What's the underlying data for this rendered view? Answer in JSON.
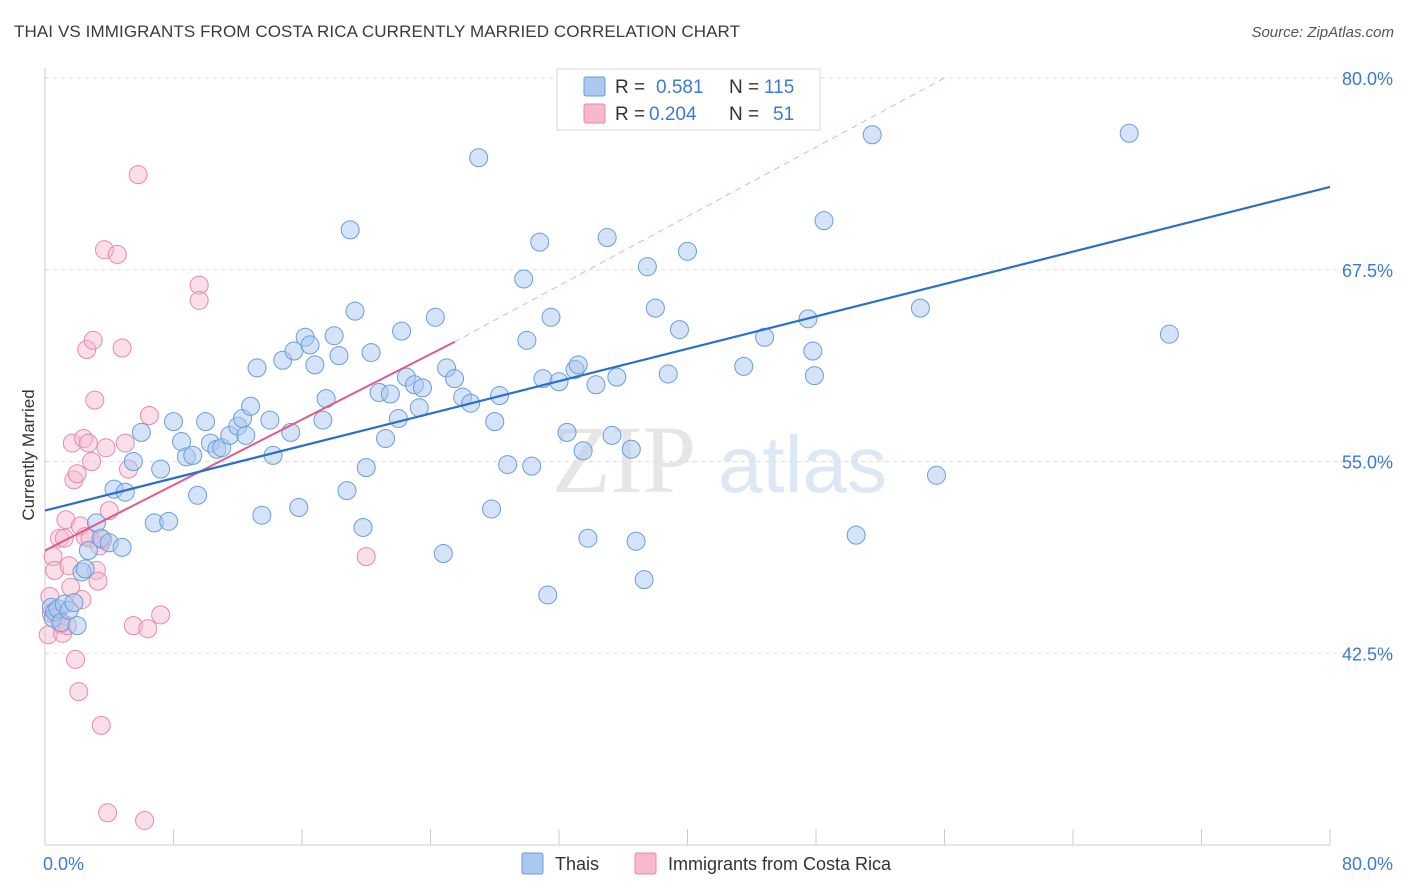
{
  "title": "THAI VS IMMIGRANTS FROM COSTA RICA CURRENTLY MARRIED CORRELATION CHART",
  "source": "Source: ZipAtlas.com",
  "watermark": {
    "zip": "ZIP",
    "atlas": "atlas"
  },
  "legend": {
    "r_label": "R =",
    "n_label": "N =",
    "rows": [
      {
        "r": "0.581",
        "n": "115",
        "color": "#aac8f0"
      },
      {
        "r": "0.204",
        "n": "51",
        "color": "#f7b8cc"
      }
    ]
  },
  "bottom_legend": [
    "Thais",
    "Immigrants from Costa Rica"
  ],
  "colors": {
    "blue_fill": "#aac8f0",
    "blue_stroke": "#6a9ed8",
    "blue_line": "#2b6fcc",
    "pink_fill": "#f7b8cc",
    "pink_stroke": "#e68aa8",
    "pink_line": "#e05a8a",
    "grid": "#dddddd",
    "axis_text": "#3a7bd5"
  },
  "chart_data": {
    "type": "scatter",
    "xlabel": "",
    "ylabel": "Currently Married",
    "xlim": [
      0,
      80
    ],
    "ylim": [
      30,
      80
    ],
    "x_ticks_labels": [
      "0.0%",
      "80.0%"
    ],
    "y_ticks": [
      42.5,
      55.0,
      67.5,
      80.0
    ],
    "y_ticks_labels": [
      "42.5%",
      "55.0%",
      "67.5%",
      "80.0%"
    ],
    "grid": true,
    "legend_position": "top-center",
    "series": [
      {
        "name": "Thais",
        "trend": {
          "x": [
            0,
            80
          ],
          "y": [
            51.8,
            72.9
          ]
        },
        "points": [
          [
            0.4,
            45.5
          ],
          [
            0.5,
            44.8
          ],
          [
            0.6,
            45.2
          ],
          [
            0.8,
            45.4
          ],
          [
            1.0,
            44.5
          ],
          [
            1.2,
            45.7
          ],
          [
            1.5,
            45.3
          ],
          [
            1.8,
            45.8
          ],
          [
            2.0,
            44.3
          ],
          [
            2.3,
            47.8
          ],
          [
            2.5,
            48.0
          ],
          [
            2.7,
            49.2
          ],
          [
            3.2,
            51.0
          ],
          [
            3.5,
            50.0
          ],
          [
            4.0,
            49.7
          ],
          [
            4.3,
            53.2
          ],
          [
            4.8,
            49.4
          ],
          [
            5.0,
            53.0
          ],
          [
            5.5,
            55.0
          ],
          [
            6.0,
            56.9
          ],
          [
            6.8,
            51.0
          ],
          [
            7.2,
            54.5
          ],
          [
            7.7,
            51.1
          ],
          [
            8.0,
            57.6
          ],
          [
            8.5,
            56.3
          ],
          [
            8.8,
            55.3
          ],
          [
            9.2,
            55.4
          ],
          [
            9.5,
            52.8
          ],
          [
            10.0,
            57.6
          ],
          [
            10.3,
            56.2
          ],
          [
            10.7,
            55.8
          ],
          [
            11.0,
            55.9
          ],
          [
            11.5,
            56.7
          ],
          [
            12.0,
            57.3
          ],
          [
            12.3,
            57.8
          ],
          [
            12.5,
            56.7
          ],
          [
            12.8,
            58.6
          ],
          [
            13.2,
            61.1
          ],
          [
            13.5,
            51.5
          ],
          [
            14.0,
            57.7
          ],
          [
            14.2,
            55.4
          ],
          [
            14.8,
            61.6
          ],
          [
            15.3,
            56.9
          ],
          [
            15.5,
            62.2
          ],
          [
            15.8,
            52.0
          ],
          [
            16.2,
            63.1
          ],
          [
            16.5,
            62.6
          ],
          [
            16.8,
            61.3
          ],
          [
            17.3,
            57.7
          ],
          [
            17.5,
            59.1
          ],
          [
            18.0,
            63.2
          ],
          [
            18.3,
            61.9
          ],
          [
            18.8,
            53.1
          ],
          [
            19.0,
            70.1
          ],
          [
            19.3,
            64.8
          ],
          [
            19.8,
            50.7
          ],
          [
            20.0,
            54.6
          ],
          [
            20.3,
            62.1
          ],
          [
            20.8,
            59.5
          ],
          [
            21.2,
            56.5
          ],
          [
            21.5,
            59.4
          ],
          [
            22.0,
            57.8
          ],
          [
            22.2,
            63.5
          ],
          [
            22.5,
            60.5
          ],
          [
            23.0,
            60.0
          ],
          [
            23.3,
            58.5
          ],
          [
            23.5,
            59.8
          ],
          [
            24.3,
            64.4
          ],
          [
            24.8,
            49.0
          ],
          [
            25.0,
            61.1
          ],
          [
            25.5,
            60.4
          ],
          [
            26.0,
            59.2
          ],
          [
            26.5,
            58.8
          ],
          [
            27.0,
            74.8
          ],
          [
            27.8,
            51.9
          ],
          [
            28.0,
            57.6
          ],
          [
            28.3,
            59.3
          ],
          [
            28.8,
            54.8
          ],
          [
            29.8,
            66.9
          ],
          [
            30.0,
            62.9
          ],
          [
            30.3,
            54.7
          ],
          [
            30.8,
            69.3
          ],
          [
            31.0,
            60.4
          ],
          [
            31.3,
            46.3
          ],
          [
            31.5,
            64.4
          ],
          [
            32.0,
            60.2
          ],
          [
            32.5,
            56.9
          ],
          [
            33.0,
            61.0
          ],
          [
            33.2,
            61.3
          ],
          [
            33.5,
            55.7
          ],
          [
            33.8,
            50.0
          ],
          [
            34.3,
            60.0
          ],
          [
            35.0,
            69.6
          ],
          [
            35.3,
            56.7
          ],
          [
            35.6,
            60.5
          ],
          [
            36.5,
            55.8
          ],
          [
            36.8,
            49.8
          ],
          [
            37.3,
            47.3
          ],
          [
            37.5,
            67.7
          ],
          [
            38.0,
            65.0
          ],
          [
            38.8,
            60.7
          ],
          [
            39.5,
            63.6
          ],
          [
            40.0,
            68.7
          ],
          [
            43.5,
            61.2
          ],
          [
            44.8,
            63.1
          ],
          [
            47.5,
            64.3
          ],
          [
            47.8,
            62.2
          ],
          [
            47.9,
            60.6
          ],
          [
            48.5,
            70.7
          ],
          [
            50.5,
            50.2
          ],
          [
            51.5,
            76.3
          ],
          [
            54.5,
            65.0
          ],
          [
            55.5,
            54.1
          ],
          [
            67.5,
            76.4
          ],
          [
            70.0,
            63.3
          ]
        ]
      },
      {
        "name": "Immigrants from Costa Rica",
        "trend": {
          "x": [
            0,
            25.5
          ],
          "y": [
            49.2,
            62.8
          ]
        },
        "trend_extension": {
          "x": [
            25.5,
            56
          ],
          "y": [
            62.8,
            80
          ]
        },
        "points": [
          [
            0.2,
            43.7
          ],
          [
            0.3,
            46.2
          ],
          [
            0.4,
            45.1
          ],
          [
            0.5,
            48.8
          ],
          [
            0.6,
            47.9
          ],
          [
            0.8,
            44.9
          ],
          [
            0.9,
            50.0
          ],
          [
            1.0,
            44.4
          ],
          [
            1.1,
            43.8
          ],
          [
            1.2,
            50.0
          ],
          [
            1.3,
            51.2
          ],
          [
            1.4,
            44.3
          ],
          [
            1.5,
            48.2
          ],
          [
            1.6,
            46.8
          ],
          [
            1.7,
            56.2
          ],
          [
            1.8,
            53.8
          ],
          [
            1.9,
            42.1
          ],
          [
            2.0,
            54.2
          ],
          [
            2.1,
            40.0
          ],
          [
            2.2,
            50.8
          ],
          [
            2.3,
            46.0
          ],
          [
            2.4,
            56.5
          ],
          [
            2.5,
            50.1
          ],
          [
            2.6,
            62.3
          ],
          [
            2.7,
            56.2
          ],
          [
            2.8,
            50.0
          ],
          [
            2.9,
            55.0
          ],
          [
            3.0,
            62.9
          ],
          [
            3.1,
            59.0
          ],
          [
            3.2,
            47.9
          ],
          [
            3.3,
            47.2
          ],
          [
            3.4,
            49.5
          ],
          [
            3.5,
            37.8
          ],
          [
            3.6,
            49.9
          ],
          [
            3.7,
            68.8
          ],
          [
            3.8,
            55.9
          ],
          [
            3.9,
            32.1
          ],
          [
            4.0,
            51.8
          ],
          [
            4.5,
            68.5
          ],
          [
            4.8,
            62.4
          ],
          [
            5.0,
            56.2
          ],
          [
            5.2,
            54.5
          ],
          [
            5.5,
            44.3
          ],
          [
            5.8,
            73.7
          ],
          [
            6.2,
            31.6
          ],
          [
            6.4,
            44.1
          ],
          [
            6.5,
            58.0
          ],
          [
            7.2,
            45.0
          ],
          [
            9.6,
            66.5
          ],
          [
            9.6,
            65.5
          ],
          [
            20.0,
            48.8
          ]
        ]
      }
    ]
  }
}
